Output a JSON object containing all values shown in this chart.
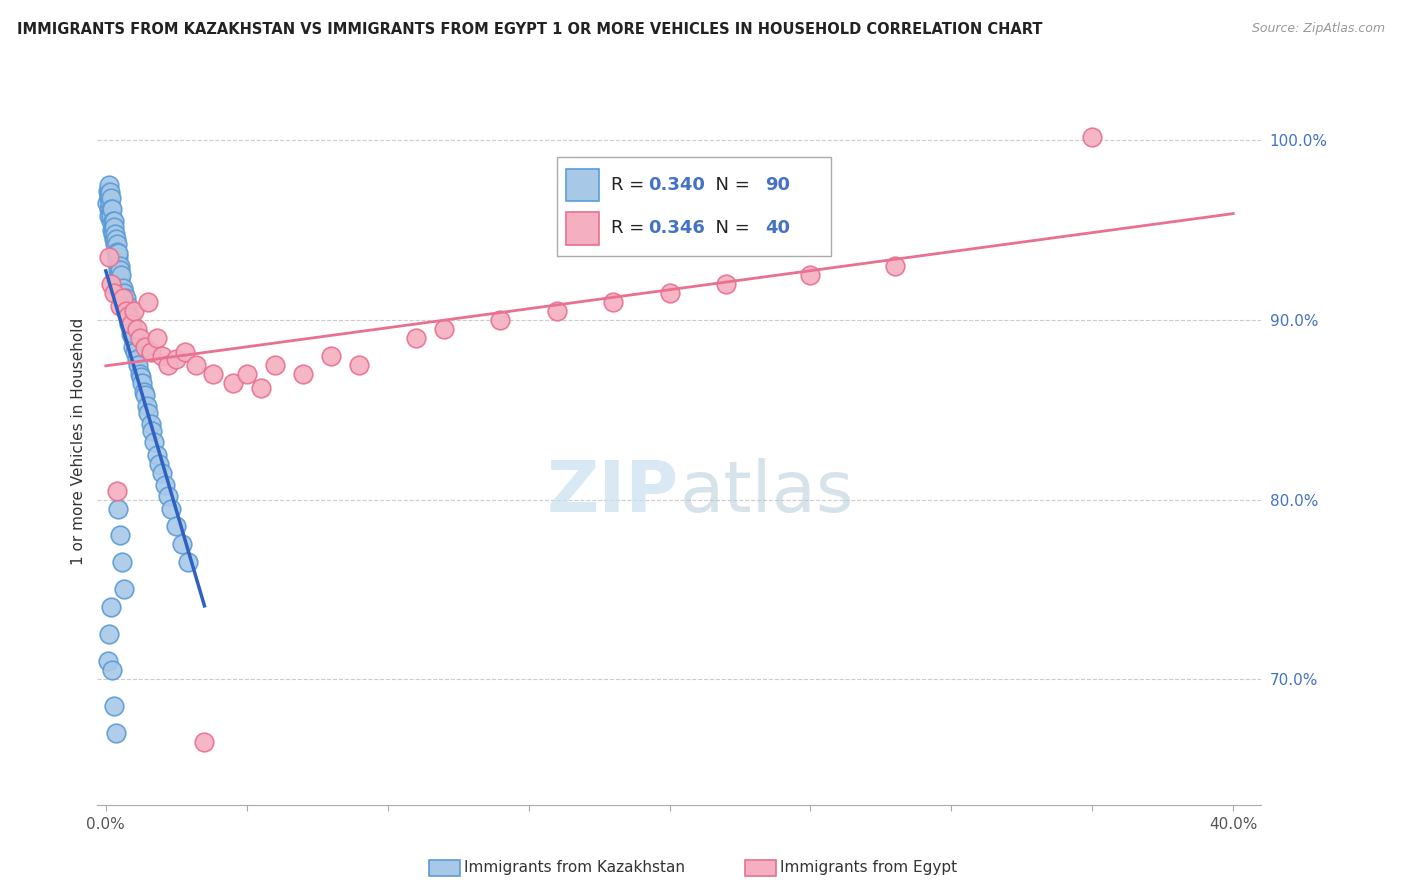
{
  "title": "IMMIGRANTS FROM KAZAKHSTAN VS IMMIGRANTS FROM EGYPT 1 OR MORE VEHICLES IN HOUSEHOLD CORRELATION CHART",
  "source": "Source: ZipAtlas.com",
  "ylabel": "1 or more Vehicles in Household",
  "xlim": [
    -0.3,
    41.0
  ],
  "ylim": [
    63.0,
    103.5
  ],
  "x_ticks": [
    0.0,
    5.0,
    10.0,
    15.0,
    20.0,
    25.0,
    30.0,
    35.0,
    40.0
  ],
  "y_ticks": [
    70.0,
    80.0,
    90.0,
    100.0
  ],
  "kazakhstan_color": "#a8c8e8",
  "kazakhstan_edge_color": "#5b9bd5",
  "egypt_color": "#f4b0c0",
  "egypt_edge_color": "#e87090",
  "regression_kazakhstan_color": "#3060c0",
  "regression_egypt_color": "#e87090",
  "legend_R_kaz": "0.340",
  "legend_N_kaz": "90",
  "legend_R_egy": "0.346",
  "legend_N_egy": "40",
  "legend_number_color": "#4472c4",
  "watermark_color": "#c8e0f0",
  "kaz_x": [
    0.05,
    0.08,
    0.1,
    0.1,
    0.12,
    0.12,
    0.13,
    0.15,
    0.15,
    0.17,
    0.18,
    0.18,
    0.2,
    0.2,
    0.22,
    0.22,
    0.25,
    0.25,
    0.27,
    0.28,
    0.3,
    0.3,
    0.32,
    0.33,
    0.35,
    0.35,
    0.38,
    0.38,
    0.4,
    0.4,
    0.42,
    0.43,
    0.45,
    0.45,
    0.48,
    0.5,
    0.5,
    0.52,
    0.55,
    0.55,
    0.58,
    0.6,
    0.62,
    0.65,
    0.68,
    0.7,
    0.72,
    0.75,
    0.78,
    0.8,
    0.82,
    0.85,
    0.88,
    0.9,
    0.92,
    0.95,
    0.98,
    1.0,
    1.05,
    1.1,
    1.15,
    1.2,
    1.25,
    1.3,
    1.35,
    1.4,
    1.45,
    1.5,
    1.6,
    1.65,
    1.7,
    1.8,
    1.9,
    2.0,
    2.1,
    2.2,
    2.3,
    2.5,
    2.7,
    2.9,
    0.08,
    0.12,
    0.18,
    0.22,
    0.28,
    0.35,
    0.42,
    0.5,
    0.58,
    0.65
  ],
  "kaz_y": [
    96.5,
    97.2,
    96.8,
    97.5,
    96.2,
    97.0,
    95.8,
    96.5,
    97.1,
    96.0,
    95.5,
    96.8,
    96.2,
    95.8,
    95.0,
    96.2,
    95.5,
    95.0,
    94.8,
    95.5,
    94.5,
    95.2,
    94.2,
    94.8,
    93.8,
    94.5,
    93.5,
    94.2,
    93.2,
    93.8,
    92.8,
    93.5,
    93.0,
    93.7,
    92.5,
    92.2,
    93.0,
    92.8,
    91.8,
    92.5,
    91.5,
    91.2,
    91.8,
    91.5,
    91.0,
    90.8,
    91.2,
    90.5,
    90.2,
    90.8,
    89.8,
    90.2,
    89.5,
    89.2,
    89.8,
    89.0,
    88.5,
    89.2,
    88.2,
    87.8,
    87.5,
    87.0,
    86.8,
    86.5,
    86.0,
    85.8,
    85.2,
    84.8,
    84.2,
    83.8,
    83.2,
    82.5,
    82.0,
    81.5,
    80.8,
    80.2,
    79.5,
    78.5,
    77.5,
    76.5,
    71.0,
    72.5,
    74.0,
    70.5,
    68.5,
    67.0,
    79.5,
    78.0,
    76.5,
    75.0
  ],
  "egy_x": [
    0.1,
    0.2,
    0.3,
    0.5,
    0.6,
    0.7,
    0.8,
    0.9,
    1.0,
    1.1,
    1.2,
    1.4,
    1.6,
    1.8,
    2.0,
    2.2,
    2.5,
    2.8,
    3.2,
    3.8,
    4.5,
    5.0,
    5.5,
    6.0,
    7.0,
    8.0,
    9.0,
    11.0,
    12.0,
    14.0,
    16.0,
    18.0,
    20.0,
    22.0,
    25.0,
    28.0,
    35.0,
    0.4,
    1.5,
    3.5
  ],
  "egy_y": [
    93.5,
    92.0,
    91.5,
    90.8,
    91.2,
    90.5,
    90.2,
    89.8,
    90.5,
    89.5,
    89.0,
    88.5,
    88.2,
    89.0,
    88.0,
    87.5,
    87.8,
    88.2,
    87.5,
    87.0,
    86.5,
    87.0,
    86.2,
    87.5,
    87.0,
    88.0,
    87.5,
    89.0,
    89.5,
    90.0,
    90.5,
    91.0,
    91.5,
    92.0,
    92.5,
    93.0,
    100.2,
    80.5,
    91.0,
    66.5
  ]
}
